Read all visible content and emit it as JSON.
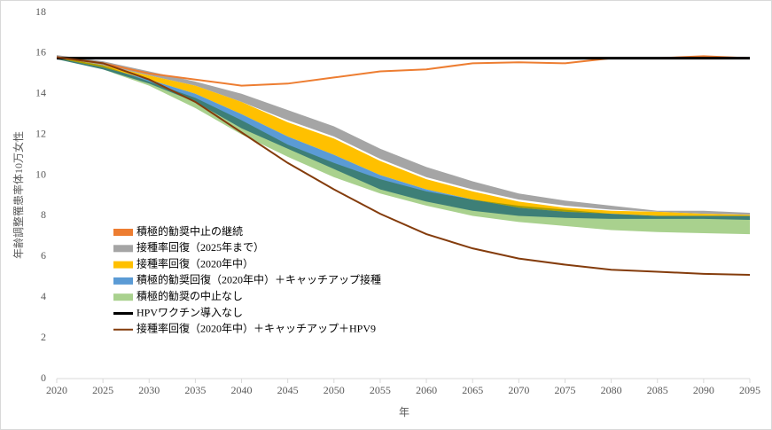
{
  "chart_data": {
    "type": "line",
    "x_label": "年",
    "y_label": "年齢調整罹患率体10万女性",
    "x": [
      2020,
      2025,
      2030,
      2035,
      2040,
      2045,
      2050,
      2055,
      2060,
      2065,
      2070,
      2075,
      2080,
      2085,
      2090,
      2095
    ],
    "xlim": [
      2020,
      2095
    ],
    "xticks": [
      2020,
      2025,
      2030,
      2035,
      2040,
      2045,
      2050,
      2055,
      2060,
      2065,
      2070,
      2075,
      2080,
      2085,
      2090,
      2095
    ],
    "ylim": [
      0,
      18
    ],
    "yticks": [
      0,
      2,
      4,
      6,
      8,
      10,
      12,
      14,
      16,
      18
    ],
    "legend": "lower-left",
    "series": [
      {
        "name": "積極的勧奨中止の継続",
        "color": "#ed7d31",
        "kind": "line",
        "width": 2,
        "values": [
          15.8,
          15.5,
          15.0,
          14.7,
          14.4,
          14.5,
          14.8,
          15.1,
          15.2,
          15.5,
          15.55,
          15.5,
          15.75,
          15.75,
          15.85,
          15.75
        ]
      },
      {
        "name": "接種率回復（2025年まで）",
        "color": "#a5a5a5",
        "kind": "band",
        "upper": [
          15.9,
          15.6,
          15.1,
          14.6,
          14.0,
          13.2,
          12.4,
          11.3,
          10.4,
          9.7,
          9.1,
          8.75,
          8.5,
          8.25,
          8.25,
          8.15
        ],
        "lower": [
          15.8,
          15.4,
          14.9,
          14.4,
          13.6,
          12.7,
          11.9,
          10.8,
          9.9,
          9.3,
          8.8,
          8.5,
          8.3,
          8.2,
          8.1,
          8.05
        ]
      },
      {
        "name": "接種率回復（2020年中）",
        "color": "#ffc000",
        "kind": "band",
        "upper": [
          15.8,
          15.4,
          14.9,
          14.4,
          13.6,
          12.6,
          11.8,
          10.7,
          9.8,
          9.2,
          8.7,
          8.4,
          8.25,
          8.2,
          8.1,
          8.05
        ],
        "lower": [
          15.75,
          15.3,
          14.7,
          14.0,
          13.0,
          11.9,
          11.0,
          10.0,
          9.3,
          8.8,
          8.4,
          8.2,
          8.1,
          8.0,
          8.0,
          8.0
        ]
      },
      {
        "name": "積極的勧奨回復（2020年中）＋キャッチアップ接種",
        "color": "#5b9bd5",
        "kind": "band",
        "upper": [
          15.75,
          15.3,
          14.7,
          14.0,
          13.0,
          11.9,
          11.0,
          10.0,
          9.3,
          8.8,
          8.4,
          8.2,
          8.1,
          8.0,
          8.0,
          8.0
        ],
        "lower": [
          15.7,
          15.2,
          14.5,
          13.6,
          12.3,
          11.3,
          10.3,
          9.3,
          8.7,
          8.25,
          8.0,
          7.9,
          7.85,
          7.85,
          7.85,
          7.8
        ]
      },
      {
        "name": "積極的勧奨の中止なし",
        "color": "#a9d18e",
        "kind": "band",
        "upper": [
          15.8,
          15.4,
          14.6,
          13.8,
          12.7,
          11.5,
          10.6,
          9.8,
          9.2,
          8.8,
          8.5,
          8.3,
          8.1,
          8.0,
          8.0,
          8.0
        ],
        "lower": [
          15.7,
          15.2,
          14.4,
          13.3,
          12.0,
          10.9,
          9.9,
          9.1,
          8.5,
          8.0,
          7.7,
          7.5,
          7.3,
          7.2,
          7.15,
          7.1
        ]
      },
      {
        "name": "HPVワクチン導入なし",
        "color": "#000000",
        "kind": "line",
        "width": 3,
        "values": [
          15.75,
          15.75,
          15.75,
          15.75,
          15.75,
          15.75,
          15.75,
          15.75,
          15.75,
          15.75,
          15.75,
          15.75,
          15.75,
          15.75,
          15.75,
          15.75
        ]
      },
      {
        "name": "接種率回復（2020年中）＋キャッチアップ＋HPV9",
        "color": "#843c0c",
        "kind": "line",
        "width": 2,
        "values": [
          15.8,
          15.5,
          14.7,
          13.6,
          12.1,
          10.6,
          9.3,
          8.1,
          7.1,
          6.4,
          5.9,
          5.6,
          5.35,
          5.25,
          5.15,
          5.1
        ]
      }
    ]
  }
}
